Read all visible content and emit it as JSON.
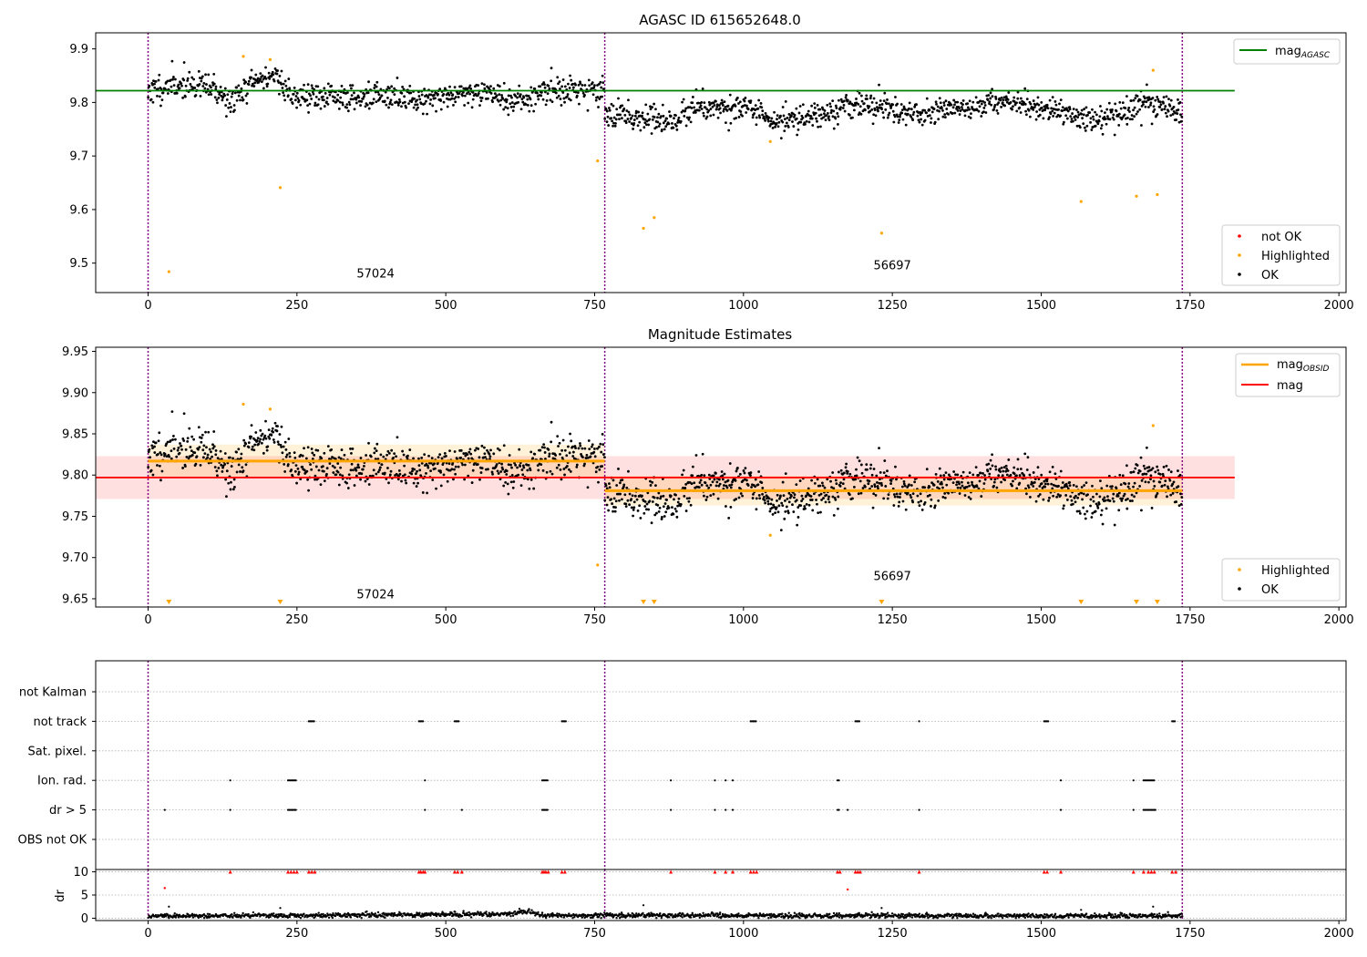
{
  "figure": {
    "top_title": "AGASC ID 615652648.0",
    "middle_title": "Magnitude Estimates",
    "obsid_labels": [
      "57024",
      "56697"
    ]
  },
  "colors": {
    "ok": "#000000",
    "highlighted": "#ffa500",
    "not_ok": "#ff0000",
    "agasc_line": "#008000",
    "obsid_line": "#ffa500",
    "mean_line": "#ff0000",
    "boundary": "#800080"
  },
  "legends": {
    "top_right": {
      "label_main": "mag",
      "label_sub": "AGASC"
    },
    "top_points": [
      "not OK",
      "Highlighted",
      "OK"
    ],
    "middle_right": [
      {
        "label_main": "mag",
        "label_sub": "OBSID"
      },
      {
        "label_main": "mag",
        "label_sub": ""
      }
    ],
    "middle_points": [
      "Highlighted",
      "OK"
    ]
  },
  "chart_data": [
    {
      "type": "scatter",
      "name": "top",
      "xlim": [
        -88,
        2012
      ],
      "ylim": [
        9.445,
        9.93
      ],
      "xticks": [
        0,
        250,
        500,
        750,
        1000,
        1250,
        1500,
        1750,
        2000
      ],
      "yticks": [
        9.5,
        9.6,
        9.7,
        9.8,
        9.9
      ],
      "mag_agasc": 9.822,
      "mag_agasc_xrange": [
        -88,
        1825
      ],
      "obs_boundaries": [
        0,
        767,
        1737
      ],
      "obs_labels": [
        {
          "text": "57024",
          "x": 382,
          "y": 9.48
        },
        {
          "text": "56697",
          "x": 1250,
          "y": 9.495
        }
      ],
      "ok_segments": [
        {
          "x": [
            0,
            767
          ],
          "profile": [
            [
              0,
              9.822
            ],
            [
              60,
              9.835
            ],
            [
              110,
              9.825
            ],
            [
              140,
              9.8
            ],
            [
              175,
              9.838
            ],
            [
              215,
              9.852
            ],
            [
              240,
              9.812
            ],
            [
              320,
              9.81
            ],
            [
              390,
              9.81
            ],
            [
              470,
              9.808
            ],
            [
              560,
              9.822
            ],
            [
              620,
              9.8
            ],
            [
              680,
              9.825
            ],
            [
              767,
              9.82
            ]
          ],
          "n": 760,
          "sd": 0.013,
          "seed": 11
        },
        {
          "x": [
            767,
            1737
          ],
          "profile": [
            [
              767,
              9.785
            ],
            [
              880,
              9.762
            ],
            [
              920,
              9.795
            ],
            [
              1000,
              9.79
            ],
            [
              1050,
              9.762
            ],
            [
              1100,
              9.775
            ],
            [
              1200,
              9.797
            ],
            [
              1300,
              9.778
            ],
            [
              1430,
              9.8
            ],
            [
              1510,
              9.79
            ],
            [
              1600,
              9.765
            ],
            [
              1680,
              9.8
            ],
            [
              1737,
              9.782
            ]
          ],
          "n": 970,
          "sd": 0.012,
          "seed": 23
        }
      ],
      "highlighted": [
        [
          35,
          9.484
        ],
        [
          160,
          9.886
        ],
        [
          205,
          9.88
        ],
        [
          222,
          9.641
        ],
        [
          755,
          9.691
        ],
        [
          832,
          9.565
        ],
        [
          850,
          9.585
        ],
        [
          1045,
          9.727
        ],
        [
          1232,
          9.556
        ],
        [
          1567,
          9.615
        ],
        [
          1660,
          9.625
        ],
        [
          1695,
          9.628
        ],
        [
          1688,
          9.86
        ]
      ]
    },
    {
      "type": "scatter",
      "name": "middle",
      "xlim": [
        -88,
        2012
      ],
      "ylim": [
        9.64,
        9.955
      ],
      "xticks": [
        0,
        250,
        500,
        750,
        1000,
        1250,
        1500,
        1750,
        2000
      ],
      "yticks": [
        9.65,
        9.7,
        9.75,
        9.8,
        9.85,
        9.9,
        9.95
      ],
      "mag_mean": 9.797,
      "mag_mean_band": [
        9.771,
        9.823
      ],
      "mag_mean_xrange": [
        -88,
        1825
      ],
      "obsid_mags": [
        {
          "x": [
            0,
            767
          ],
          "value": 9.817,
          "band": [
            9.797,
            9.837
          ]
        },
        {
          "x": [
            767,
            1737
          ],
          "value": 9.781,
          "band": [
            9.763,
            9.799
          ]
        }
      ],
      "obs_boundaries": [
        0,
        767,
        1737
      ],
      "obs_labels": [
        {
          "text": "57024",
          "x": 382,
          "y": 9.655
        },
        {
          "text": "56697",
          "x": 1250,
          "y": 9.677
        }
      ],
      "below_axis_markers": [
        35,
        222,
        832,
        850,
        1232,
        1567,
        1660,
        1695
      ],
      "highlighted": [
        [
          160,
          9.886
        ],
        [
          205,
          9.88
        ],
        [
          755,
          9.691
        ],
        [
          1045,
          9.727
        ],
        [
          1688,
          9.86
        ]
      ]
    },
    {
      "type": "scatter",
      "name": "flags",
      "xlim": [
        -88,
        2012
      ],
      "categories": [
        "not Kalman",
        "not track",
        "Sat. pixel.",
        "Ion. rad.",
        "dr > 5",
        "OBS not OK"
      ],
      "flag_points": {
        "not track": [
          [
            270,
            280
          ],
          [
            455,
            462
          ],
          [
            515,
            522
          ],
          [
            695,
            702
          ],
          [
            1012,
            1022
          ],
          [
            1188,
            1196
          ],
          [
            1295,
            1296
          ],
          [
            1505,
            1512
          ],
          [
            1720,
            1726
          ]
        ],
        "Ion. rad.": [
          [
            138,
            138
          ],
          [
            235,
            250
          ],
          [
            465,
            465
          ],
          [
            662,
            672
          ],
          [
            878,
            878
          ],
          [
            952,
            952
          ],
          [
            970,
            970
          ],
          [
            982,
            982
          ],
          [
            1158,
            1162
          ],
          [
            1533,
            1533
          ],
          [
            1655,
            1655
          ],
          [
            1672,
            1690
          ]
        ],
        "dr > 5": [
          [
            28,
            28
          ],
          [
            138,
            138
          ],
          [
            235,
            250
          ],
          [
            465,
            465
          ],
          [
            527,
            527
          ],
          [
            662,
            672
          ],
          [
            878,
            878
          ],
          [
            952,
            952
          ],
          [
            970,
            970
          ],
          [
            982,
            982
          ],
          [
            1158,
            1162
          ],
          [
            1175,
            1175
          ],
          [
            1295,
            1295
          ],
          [
            1533,
            1533
          ],
          [
            1655,
            1655
          ],
          [
            1672,
            1692
          ]
        ]
      },
      "obs_boundaries": [
        0,
        767,
        1737
      ]
    },
    {
      "type": "scatter",
      "name": "dr",
      "ylabel": "dr",
      "xlim": [
        -88,
        2012
      ],
      "ylim": [
        -0.5,
        10.5
      ],
      "xticks": [
        0,
        250,
        500,
        750,
        1000,
        1250,
        1500,
        1750,
        2000
      ],
      "yticks": [
        0,
        5,
        10
      ],
      "ok_profile": [
        [
          0,
          0.5
        ],
        [
          300,
          0.6
        ],
        [
          600,
          0.9
        ],
        [
          640,
          1.5
        ],
        [
          660,
          0.6
        ],
        [
          1737,
          0.5
        ]
      ],
      "not_ok_at_10": [
        138,
        235,
        240,
        245,
        250,
        270,
        275,
        280,
        455,
        458,
        462,
        465,
        515,
        520,
        527,
        662,
        665,
        668,
        672,
        695,
        700,
        878,
        952,
        970,
        982,
        1012,
        1017,
        1022,
        1158,
        1162,
        1188,
        1192,
        1196,
        1295,
        1505,
        1510,
        1533,
        1655,
        1672,
        1680,
        1685,
        1690,
        1720,
        1726
      ],
      "not_ok_other": [
        [
          28,
          6.5
        ],
        [
          1175,
          6.2
        ]
      ],
      "outliers": [
        [
          35,
          2.5
        ],
        [
          222,
          2.2
        ],
        [
          832,
          2.8
        ],
        [
          1232,
          2.2
        ],
        [
          1567,
          1.8
        ],
        [
          1688,
          2.5
        ]
      ],
      "obs_boundaries": [
        0,
        767,
        1737
      ]
    }
  ]
}
